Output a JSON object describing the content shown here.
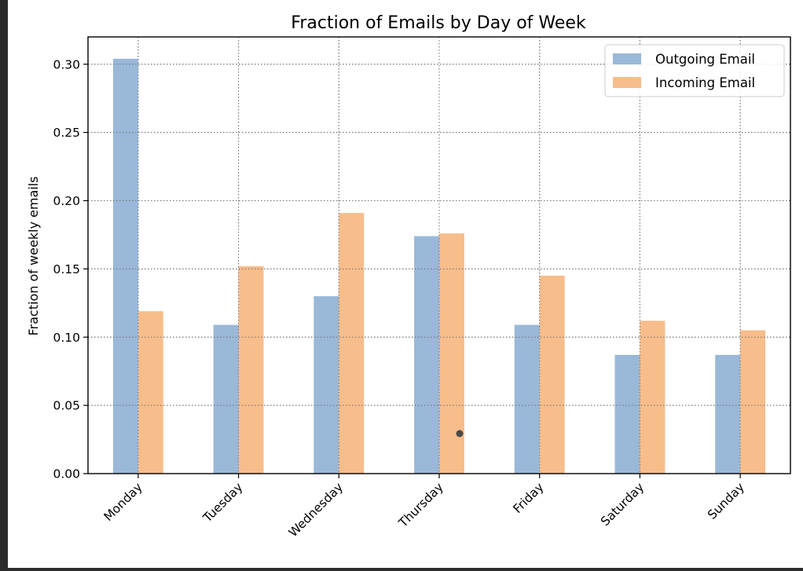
{
  "chart_data": {
    "type": "bar",
    "title": "Fraction of Emails by Day of Week",
    "xlabel": "",
    "ylabel": "Fraction of weekly emails",
    "ylim": [
      0,
      0.32
    ],
    "yticks": [
      "0.00",
      "0.05",
      "0.10",
      "0.15",
      "0.20",
      "0.25",
      "0.30"
    ],
    "categories": [
      "Monday",
      "Tuesday",
      "Wednesday",
      "Thursday",
      "Friday",
      "Saturday",
      "Sunday"
    ],
    "series": [
      {
        "name": "Outgoing Email",
        "color": "#9ab8d8",
        "values": [
          0.304,
          0.109,
          0.13,
          0.174,
          0.109,
          0.087,
          0.087
        ]
      },
      {
        "name": "Incoming Email",
        "color": "#f7bd8b",
        "values": [
          0.119,
          0.152,
          0.191,
          0.176,
          0.145,
          0.112,
          0.105
        ]
      }
    ],
    "grid": true,
    "legend_position": "top-right"
  }
}
